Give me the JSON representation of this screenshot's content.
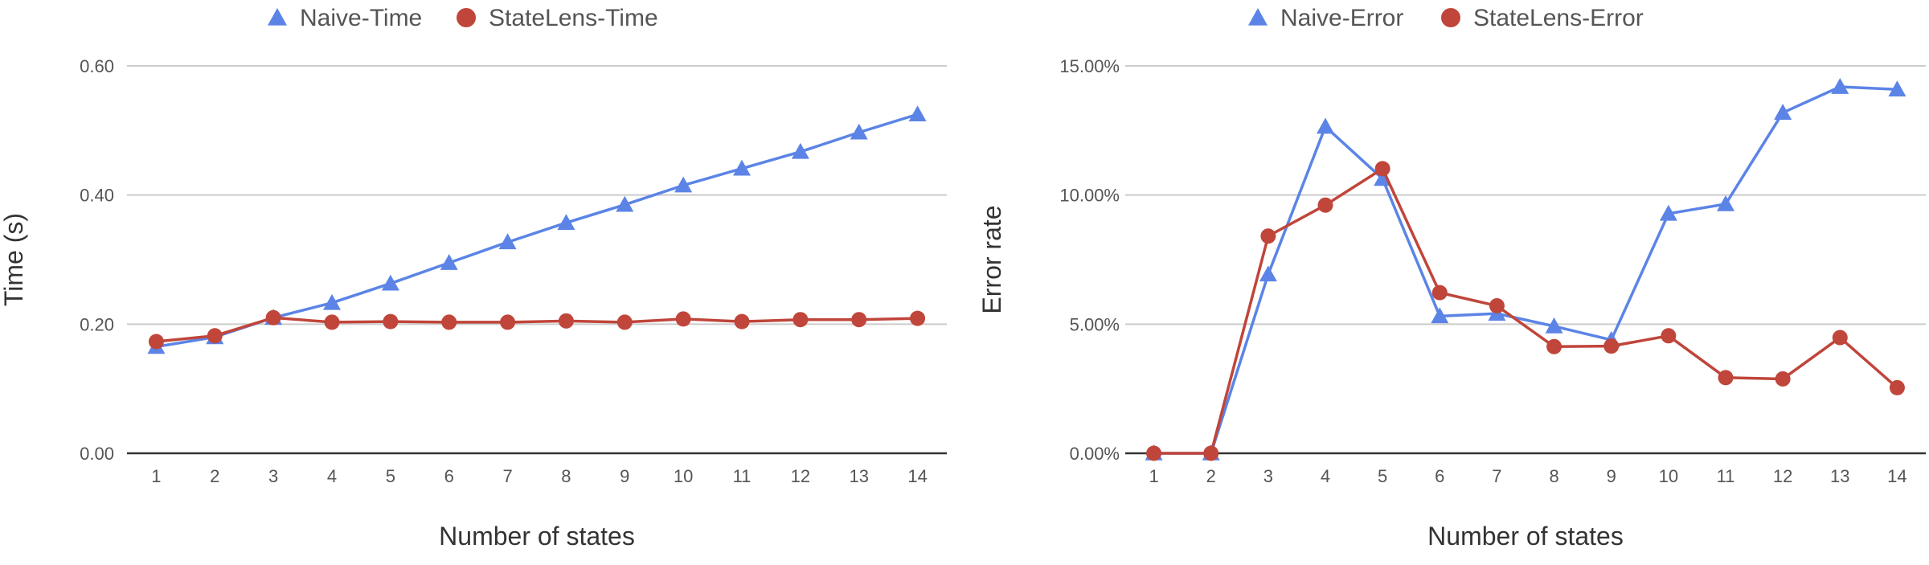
{
  "colors": {
    "series_a": "#5b84e6",
    "series_b": "#c0453a",
    "grid": "#cccccc",
    "axis": "#333333",
    "tick_text": "#555555",
    "title_text": "#333333"
  },
  "chart_data": [
    {
      "type": "line",
      "x": [
        1,
        2,
        3,
        4,
        5,
        6,
        7,
        8,
        9,
        10,
        11,
        12,
        13,
        14
      ],
      "series": [
        {
          "name": "Naive-Time",
          "marker": "triangle",
          "color": "#5b84e6",
          "values": [
            0.165,
            0.18,
            0.21,
            0.233,
            0.263,
            0.295,
            0.327,
            0.357,
            0.385,
            0.415,
            0.441,
            0.467,
            0.497,
            0.525
          ]
        },
        {
          "name": "StateLens-Time",
          "marker": "circle",
          "color": "#c0453a",
          "values": [
            0.173,
            0.182,
            0.21,
            0.203,
            0.204,
            0.203,
            0.203,
            0.205,
            0.203,
            0.208,
            0.204,
            0.207,
            0.207,
            0.209
          ]
        }
      ],
      "xlabel": "Number of states",
      "ylabel": "Time (s)",
      "ylim": [
        0,
        0.6
      ],
      "yticks": [
        "0.00",
        "0.20",
        "0.40",
        "0.60"
      ],
      "xticks": [
        "1",
        "2",
        "3",
        "4",
        "5",
        "6",
        "7",
        "8",
        "9",
        "10",
        "11",
        "12",
        "13",
        "14"
      ],
      "grid": true,
      "legend_position": "top-center"
    },
    {
      "type": "line",
      "x": [
        1,
        2,
        3,
        4,
        5,
        6,
        7,
        8,
        9,
        10,
        11,
        12,
        13,
        14
      ],
      "series": [
        {
          "name": "Naive-Error",
          "marker": "triangle",
          "color": "#5b84e6",
          "values": [
            0.0,
            0.0,
            0.0693,
            0.1265,
            0.1063,
            0.0531,
            0.0541,
            0.0492,
            0.0439,
            0.0928,
            0.0965,
            0.1319,
            0.1419,
            0.1409
          ]
        },
        {
          "name": "StateLens-Error",
          "marker": "circle",
          "color": "#c0453a",
          "values": [
            0.0,
            0.0,
            0.0841,
            0.0961,
            0.1102,
            0.0622,
            0.0571,
            0.0413,
            0.0415,
            0.0455,
            0.0293,
            0.0288,
            0.0448,
            0.0254
          ]
        }
      ],
      "xlabel": "Number of states",
      "ylabel": "Error rate",
      "ylim": [
        0,
        0.15
      ],
      "yticks": [
        "0.00%",
        "5.00%",
        "10.00%",
        "15.00%"
      ],
      "xticks": [
        "1",
        "2",
        "3",
        "4",
        "5",
        "6",
        "7",
        "8",
        "9",
        "10",
        "11",
        "12",
        "13",
        "14"
      ],
      "grid": true,
      "legend_position": "top-center"
    }
  ]
}
